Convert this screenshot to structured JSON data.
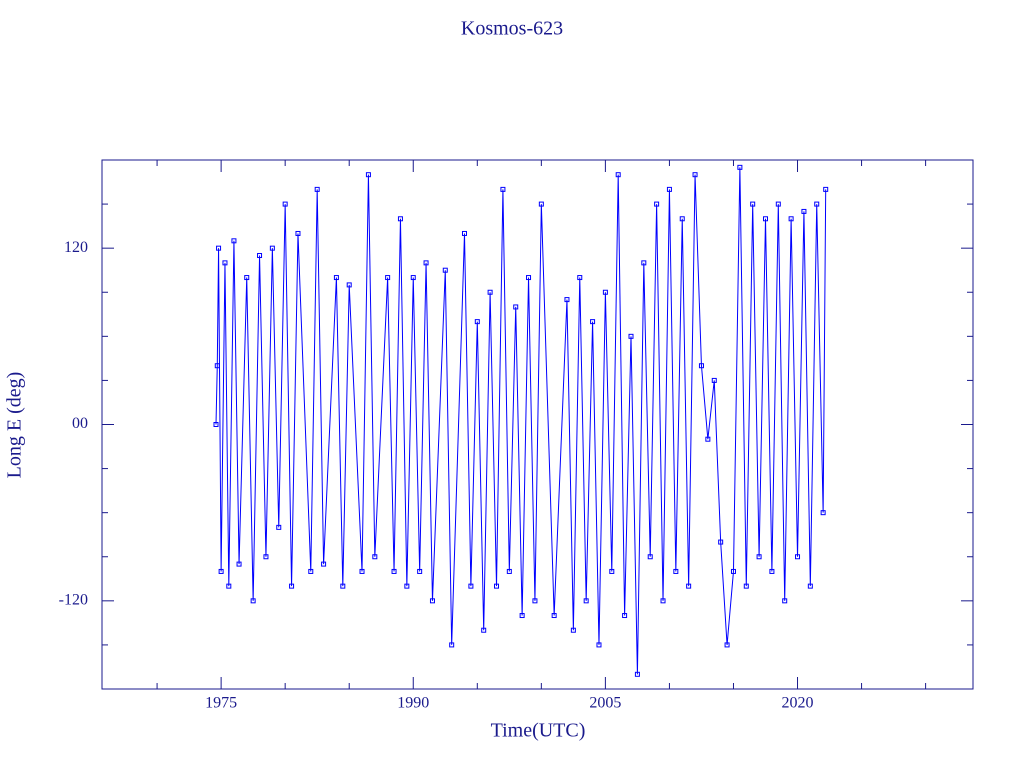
{
  "chart_data": {
    "type": "scatter",
    "title": "Kosmos-623",
    "x_label": "Time(UTC)",
    "y_label": "Long E (deg)",
    "color": "#0000ff",
    "line": true,
    "marker": "square",
    "xlim": [
      1965.7,
      2033.7
    ],
    "ylim": [
      -180,
      180
    ],
    "xticks": [
      1975,
      1990,
      2005,
      2020
    ],
    "yticks": [
      -120,
      {
        "value": 0,
        "label": "00"
      },
      120
    ],
    "xminorticks": [
      1970,
      1980,
      1985,
      1995,
      2000,
      2010,
      2015,
      2025,
      2030
    ],
    "yminorticks": [
      -150,
      -90,
      -60,
      -30,
      30,
      60,
      90,
      150
    ],
    "x": [
      1974.6,
      1974.7,
      1974.8,
      1975.0,
      1975.3,
      1975.6,
      1976.0,
      1976.4,
      1977.0,
      1977.5,
      1978.0,
      1978.5,
      1979.0,
      1979.5,
      1980.0,
      1980.5,
      1981.0,
      1982.0,
      1982.5,
      1983.0,
      1984.0,
      1984.5,
      1985.0,
      1986.0,
      1986.5,
      1987.0,
      1988.0,
      1988.5,
      1989.0,
      1989.5,
      1990.0,
      1990.5,
      1991.0,
      1991.5,
      1992.5,
      1993.0,
      1994.0,
      1994.5,
      1995.0,
      1995.5,
      1996.0,
      1996.5,
      1997.0,
      1997.5,
      1998.0,
      1998.5,
      1999.0,
      1999.5,
      2000.0,
      2001.0,
      2002.0,
      2002.5,
      2003.0,
      2003.5,
      2004.0,
      2004.5,
      2005.0,
      2005.5,
      2006.0,
      2006.5,
      2007.0,
      2007.5,
      2008.0,
      2008.5,
      2009.0,
      2009.5,
      2010.0,
      2010.5,
      2011.0,
      2011.5,
      2012.0,
      2012.5,
      2013.0,
      2013.5,
      2014.0,
      2014.5,
      2015.0,
      2015.5,
      2016.0,
      2016.5,
      2017.0,
      2017.5,
      2018.0,
      2018.5,
      2019.0,
      2019.5,
      2020.0,
      2020.5,
      2021.0,
      2021.5,
      2022.0,
      2022.2
    ],
    "y": [
      0,
      40,
      120,
      -100,
      110,
      -110,
      125,
      -95,
      100,
      -120,
      115,
      -90,
      120,
      -70,
      150,
      -110,
      130,
      -100,
      160,
      -95,
      100,
      -110,
      95,
      -100,
      170,
      -90,
      100,
      -100,
      140,
      -110,
      100,
      -100,
      110,
      -120,
      105,
      -150,
      130,
      -110,
      70,
      -140,
      90,
      -110,
      160,
      -100,
      80,
      -130,
      100,
      -120,
      150,
      -130,
      85,
      -140,
      100,
      -120,
      70,
      -150,
      90,
      -100,
      170,
      -130,
      60,
      -170,
      110,
      -90,
      150,
      -120,
      160,
      -100,
      140,
      -110,
      170,
      40,
      -10,
      30,
      -80,
      -150,
      -100,
      175,
      -110,
      150,
      -90,
      140,
      -100,
      150,
      -120,
      140,
      -90,
      145,
      -110,
      150,
      -60,
      160
    ]
  }
}
